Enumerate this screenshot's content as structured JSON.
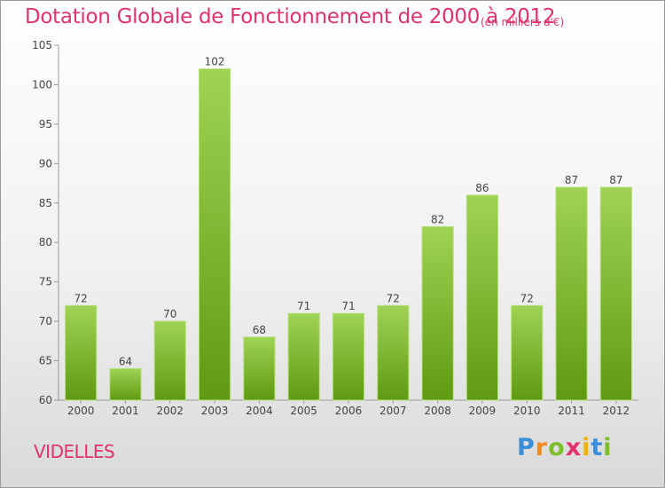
{
  "chart_data": {
    "type": "bar",
    "title": "Dotation Globale de Fonctionnement de 2000 à 2012",
    "subtitle": "(en milliers d'€)",
    "categories": [
      "2000",
      "2001",
      "2002",
      "2003",
      "2004",
      "2005",
      "2006",
      "2007",
      "2008",
      "2009",
      "2010",
      "2011",
      "2012"
    ],
    "values": [
      72,
      64,
      70,
      102,
      68,
      71,
      71,
      72,
      82,
      86,
      72,
      87,
      87
    ],
    "ylim": [
      60,
      105
    ],
    "yticks": [
      60,
      65,
      70,
      75,
      80,
      85,
      90,
      95,
      100,
      105
    ],
    "grid": false,
    "colors": {
      "bar_light": "#9fd354",
      "bar_dark": "#5f9a12",
      "text": "#444444",
      "title": "#e0326e"
    }
  },
  "place_name": "VIDELLES",
  "brand": {
    "letters": [
      "P",
      "r",
      "o",
      "x",
      "i",
      "t",
      "i"
    ],
    "colors": [
      "#3a8fd6",
      "#f08a1c",
      "#7cbf2a",
      "#e0326e",
      "#f0b400",
      "#3a8fd6",
      "#7cbf2a"
    ]
  }
}
